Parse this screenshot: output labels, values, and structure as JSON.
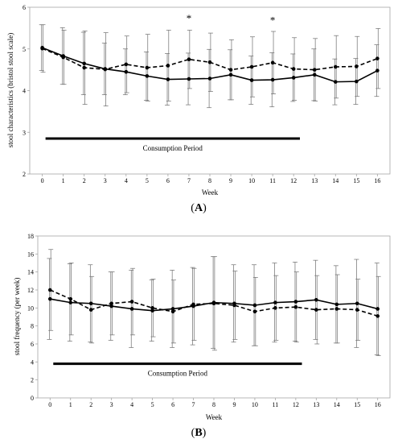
{
  "chart_data": [
    {
      "type": "line",
      "panel_label": "(A)",
      "panel_letter": "A",
      "title": "",
      "xlabel": "Week",
      "ylabel": "stool characteristics (bristol stool scale)",
      "x": [
        0,
        1,
        2,
        3,
        4,
        5,
        6,
        7,
        8,
        9,
        10,
        11,
        12,
        13,
        14,
        15,
        16
      ],
      "xlim": [
        -0.6,
        16.6
      ],
      "ylim": [
        2,
        6
      ],
      "yticks": [
        2,
        3,
        4,
        5,
        6
      ],
      "series": [
        {
          "style": "solid",
          "values": [
            5.03,
            4.83,
            4.65,
            4.52,
            4.45,
            4.35,
            4.27,
            4.28,
            4.29,
            4.38,
            4.25,
            4.26,
            4.31,
            4.38,
            4.21,
            4.22,
            4.48
          ],
          "error": [
            0.55,
            0.68,
            0.75,
            0.62,
            0.55,
            0.58,
            0.62,
            0.62,
            0.7,
            0.6,
            0.58,
            0.65,
            0.57,
            0.62,
            0.55,
            0.55,
            0.62
          ]
        },
        {
          "style": "dashed",
          "values": [
            5.01,
            4.8,
            4.55,
            4.51,
            4.63,
            4.55,
            4.6,
            4.75,
            4.68,
            4.5,
            4.57,
            4.67,
            4.52,
            4.5,
            4.57,
            4.58,
            4.77
          ],
          "error": [
            0.57,
            0.65,
            0.88,
            0.88,
            0.68,
            0.8,
            0.85,
            0.7,
            0.7,
            0.72,
            0.72,
            0.75,
            0.75,
            0.75,
            0.75,
            0.72,
            0.72
          ]
        }
      ],
      "annotations": [
        {
          "text": "*",
          "x": 7,
          "y": 5.65
        },
        {
          "text": "*",
          "x": 11,
          "y": 5.6
        }
      ],
      "period": {
        "label": "Consumption Period",
        "x_start": 0,
        "x_end": 12.3,
        "y": 2.85
      }
    },
    {
      "type": "line",
      "panel_label": "(B)",
      "panel_letter": "B",
      "title": "",
      "xlabel": "Week",
      "ylabel": "stool frequency (per week)",
      "x": [
        0,
        1,
        2,
        3,
        4,
        5,
        6,
        7,
        8,
        9,
        10,
        11,
        12,
        13,
        14,
        15,
        16
      ],
      "xlim": [
        -0.6,
        16.6
      ],
      "ylim": [
        0,
        18
      ],
      "yticks": [
        0,
        2,
        4,
        6,
        8,
        10,
        12,
        14,
        16,
        18
      ],
      "series": [
        {
          "style": "solid",
          "values": [
            11.0,
            10.6,
            10.5,
            10.2,
            9.9,
            9.7,
            9.9,
            10.2,
            10.6,
            10.5,
            10.3,
            10.6,
            10.7,
            10.9,
            10.4,
            10.5,
            9.9
          ],
          "error": [
            4.5,
            4.3,
            4.3,
            3.8,
            4.3,
            3.4,
            4.3,
            4.3,
            5.1,
            4.3,
            4.5,
            4.4,
            4.4,
            4.4,
            4.3,
            4.9,
            5.1
          ]
        },
        {
          "style": "dashed",
          "values": [
            12.0,
            11.0,
            9.8,
            10.5,
            10.7,
            10.0,
            9.6,
            10.4,
            10.5,
            10.3,
            9.6,
            10.0,
            10.1,
            9.8,
            9.9,
            9.8,
            9.1
          ],
          "error": [
            4.5,
            4.0,
            3.7,
            3.5,
            3.7,
            3.2,
            3.5,
            4.0,
            5.2,
            3.8,
            3.8,
            3.6,
            3.9,
            3.8,
            3.8,
            3.4,
            4.4
          ]
        }
      ],
      "annotations": [],
      "period": {
        "label": "Consumption Period",
        "x_start": 0,
        "x_end": 12.3,
        "y": 3.8
      }
    }
  ]
}
